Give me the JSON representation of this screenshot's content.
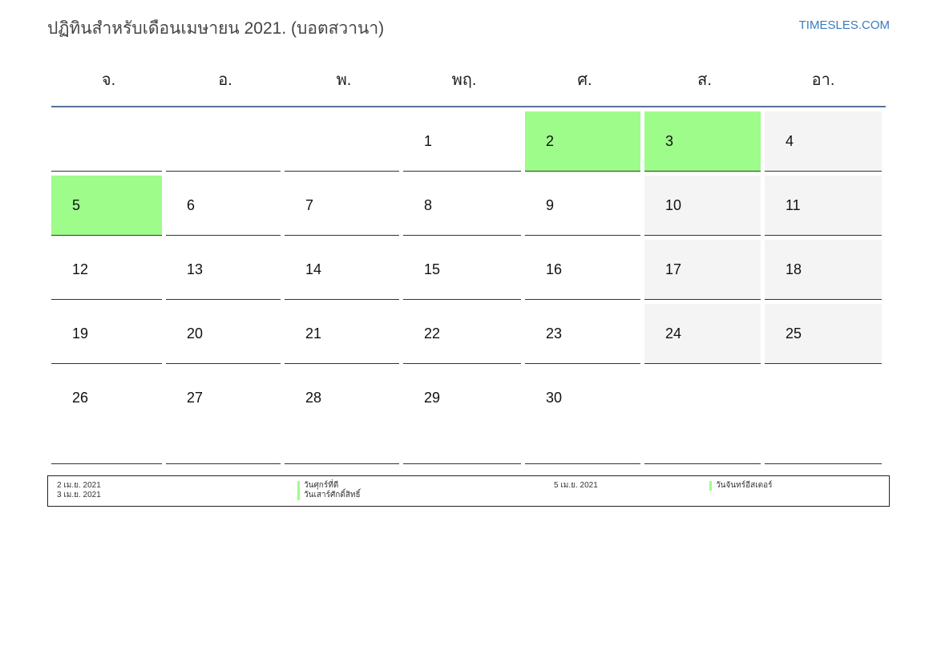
{
  "header": {
    "title": "ปฏิทินสำหรับเดือนเมษายน 2021. (บอตสวานา)",
    "site": "TIMESLES.COM"
  },
  "weekdays": [
    "จ.",
    "อ.",
    "พ.",
    "พฤ.",
    "ศ.",
    "ส.",
    "อา."
  ],
  "colors": {
    "holiday": "#9efc8a",
    "weekend": "#f4f4f4",
    "rule": "#5a7397"
  },
  "weeks": [
    [
      "",
      "",
      "",
      "1",
      "2",
      "3",
      "4"
    ],
    [
      "5",
      "6",
      "7",
      "8",
      "9",
      "10",
      "11"
    ],
    [
      "12",
      "13",
      "14",
      "15",
      "16",
      "17",
      "18"
    ],
    [
      "19",
      "20",
      "21",
      "22",
      "23",
      "24",
      "25"
    ],
    [
      "26",
      "27",
      "28",
      "29",
      "30",
      "",
      ""
    ]
  ],
  "holidays": [
    "2",
    "3",
    "5"
  ],
  "legend": {
    "left_dates": [
      "2 เม.ย. 2021",
      "3 เม.ย. 2021"
    ],
    "left_names": [
      "วันศุกร์ที่ดี",
      "วันเสาร์ศักดิ์สิทธิ์"
    ],
    "right_dates": [
      "5 เม.ย. 2021"
    ],
    "right_names": [
      "วันจันทร์อีสเตอร์"
    ]
  }
}
